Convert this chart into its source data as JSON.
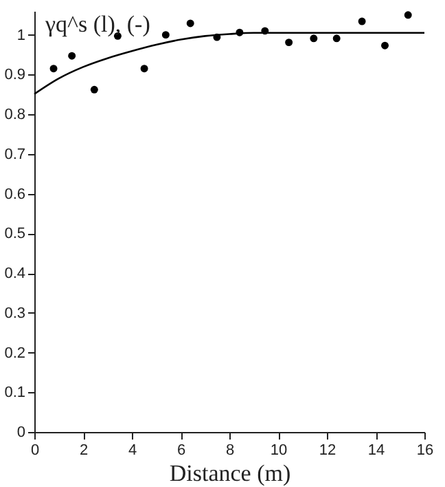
{
  "chart_data": {
    "type": "scatter",
    "xlabel": "Distance (m)",
    "ylabel": "γq^s (l), (-)",
    "xlim": [
      0,
      16
    ],
    "ylim": [
      0,
      1.06
    ],
    "xticks": [
      0,
      2,
      4,
      6,
      8,
      10,
      12,
      14,
      16
    ],
    "yticks": [
      0,
      0.1,
      0.2,
      0.3,
      0.4,
      0.5,
      0.6,
      0.7,
      0.8,
      0.9,
      1
    ],
    "grid": false,
    "series": [
      {
        "marker": "circle",
        "color": "#000000",
        "x": [
          0.79,
          1.54,
          2.46,
          3.42,
          4.51,
          5.39,
          6.4,
          7.49,
          8.42,
          9.46,
          10.44,
          11.46,
          12.4,
          13.44,
          14.38,
          15.33
        ],
        "values": [
          0.915,
          0.947,
          0.862,
          0.997,
          0.915,
          1.0,
          1.029,
          0.994,
          1.006,
          1.01,
          0.981,
          0.991,
          0.991,
          1.034,
          0.973,
          1.05
        ]
      },
      {
        "type": "line",
        "color": "#000000",
        "line_style": "solid",
        "x": [
          0,
          1,
          2,
          3,
          4,
          5,
          6,
          7,
          8,
          9,
          10,
          12,
          14,
          16
        ],
        "values": [
          0.851,
          0.89,
          0.919,
          0.941,
          0.959,
          0.975,
          0.988,
          0.997,
          1.002,
          1.005,
          1.005,
          1.005,
          1.005,
          1.005
        ]
      }
    ]
  }
}
